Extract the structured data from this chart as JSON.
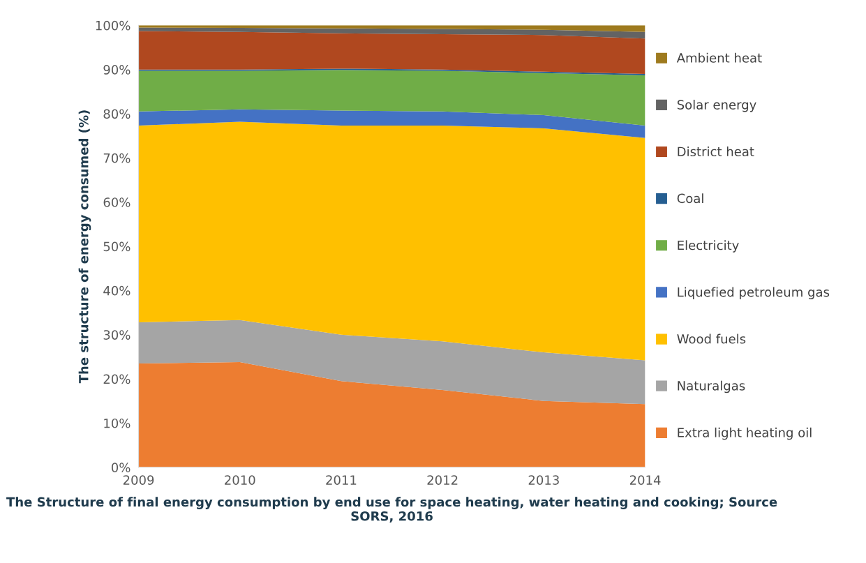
{
  "chart_data": {
    "type": "area",
    "stacked": true,
    "xlabel": "The Structure of final energy consumption by end use for space heating, water heating and cooking; Source SORS, 2016",
    "ylabel": "The structure of energy consumed (%)",
    "x": [
      2009,
      2010,
      2011,
      2012,
      2013,
      2014
    ],
    "xlim": [
      2009,
      2014
    ],
    "xticks": [
      2009,
      2010,
      2011,
      2012,
      2013,
      2014
    ],
    "ylim": [
      0,
      100
    ],
    "yticks": [
      {
        "value": 0,
        "label": "0%"
      },
      {
        "value": 10,
        "label": "10%"
      },
      {
        "value": 20,
        "label": "20%"
      },
      {
        "value": 30,
        "label": "30%"
      },
      {
        "value": 40,
        "label": "40%"
      },
      {
        "value": 50,
        "label": "50%"
      },
      {
        "value": 60,
        "label": "60%"
      },
      {
        "value": 70,
        "label": "70%"
      },
      {
        "value": 80,
        "label": "80%"
      },
      {
        "value": 90,
        "label": "90%"
      },
      {
        "value": 100,
        "label": "100%"
      }
    ],
    "grid": false,
    "legend": "right",
    "series": [
      {
        "name": "Extra light heating oil",
        "color": "#ed7d31",
        "values": [
          23.5,
          23.8,
          19.5,
          17.5,
          15,
          14.3
        ]
      },
      {
        "name": "Naturalgas",
        "color": "#a5a5a5",
        "values": [
          9.3,
          9.5,
          10.5,
          11,
          11,
          9.9
        ]
      },
      {
        "name": "Wood fuels",
        "color": "#ffc000",
        "values": [
          44.5,
          44.9,
          47.3,
          48.8,
          50.7,
          50.3
        ]
      },
      {
        "name": "Liquefied petroleum gas",
        "color": "#4472c4",
        "values": [
          3.2,
          2.8,
          3.4,
          3.2,
          3.0,
          2.8
        ]
      },
      {
        "name": "Electricity",
        "color": "#70ad47",
        "values": [
          9.2,
          8.7,
          9.2,
          9.2,
          9.5,
          11.4
        ]
      },
      {
        "name": "Coal",
        "color": "#255e91",
        "values": [
          0.3,
          0.3,
          0.3,
          0.3,
          0.3,
          0.3
        ]
      },
      {
        "name": "District heat",
        "color": "#b0481f",
        "values": [
          8.7,
          8.5,
          8,
          8,
          8.3,
          8
        ]
      },
      {
        "name": "Solar energy",
        "color": "#636363",
        "values": [
          0.8,
          0.9,
          1.1,
          1.2,
          1.2,
          1.5
        ]
      },
      {
        "name": "Ambient heat",
        "color": "#9e7a1e",
        "values": [
          0.5,
          0.6,
          0.7,
          0.8,
          1.0,
          1.5
        ]
      }
    ]
  }
}
